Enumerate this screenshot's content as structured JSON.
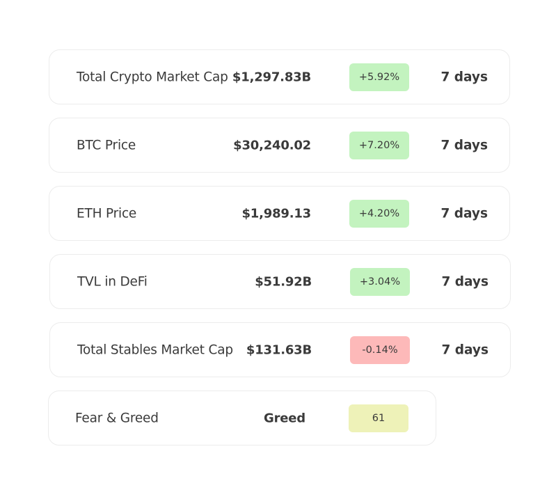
{
  "rows": [
    {
      "label": "Total Crypto Market Cap",
      "value": "$1,297.83B",
      "change": "+5.92%",
      "period": "7 days",
      "change_color": "#c3f3bf"
    },
    {
      "label": "BTC Price",
      "value": "$30,240.02",
      "change": "+7.20%",
      "period": "7 days",
      "change_color": "#c3f3bf"
    },
    {
      "label": "ETH Price",
      "value": "$1,989.13",
      "change": "+4.20%",
      "period": "7 days",
      "change_color": "#c3f3bf"
    },
    {
      "label": "TVL in DeFi",
      "value": "$51.92B",
      "change": "+3.04%",
      "period": "7 days",
      "change_color": "#c3f3bf"
    },
    {
      "label": "Total Stables Market Cap",
      "value": "$131.63B",
      "change": "-0.14%",
      "period": "7 days",
      "change_color": "#fdb9b9"
    }
  ],
  "fear_greed": {
    "label": "Fear & Greed",
    "value": "Greed",
    "index": "61",
    "index_color": "#eef2b8"
  }
}
